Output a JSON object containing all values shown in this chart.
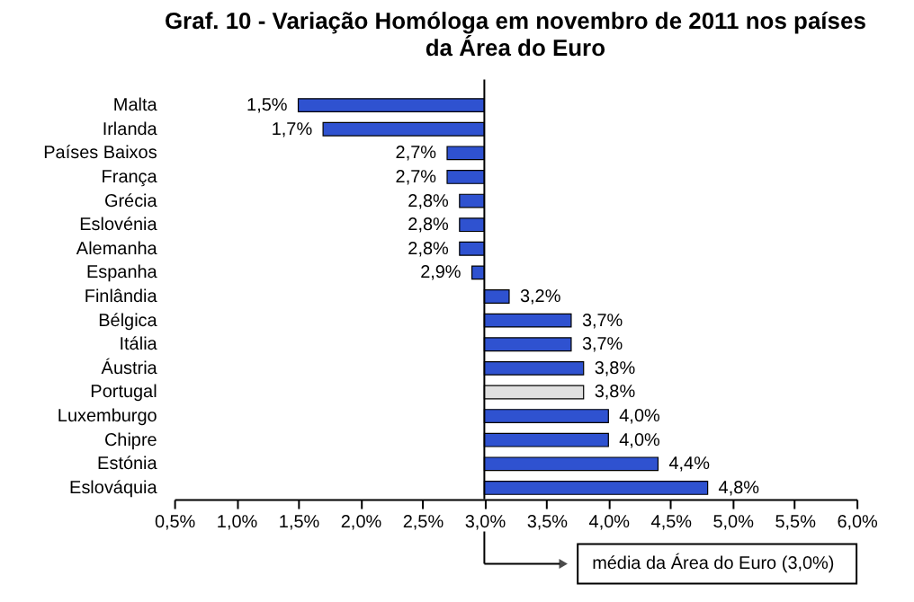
{
  "chart_data": {
    "type": "bar",
    "orientation": "horizontal",
    "title": "Graf. 10 - Variação Homóloga em novembro de 2011 nos países\nda Área do Euro",
    "categories": [
      "Malta",
      "Irlanda",
      "Países Baixos",
      "França",
      "Grécia",
      "Eslovénia",
      "Alemanha",
      "Espanha",
      "Finlândia",
      "Bélgica",
      "Itália",
      "Áustria",
      "Portugal",
      "Luxemburgo",
      "Chipre",
      "Estónia",
      "Eslováquia"
    ],
    "base": [
      3.0,
      3.0,
      3.0,
      3.0,
      3.0,
      3.0,
      3.0,
      3.0,
      3.0,
      3.0,
      3.0,
      3.0,
      3.0,
      3.0,
      3.0,
      3.0,
      3.0
    ],
    "values": [
      -1.5,
      -1.3,
      -0.3,
      -0.3,
      -0.2,
      -0.2,
      -0.2,
      -0.1,
      0.2,
      0.7,
      0.7,
      0.8,
      0.8,
      1.0,
      1.0,
      1.4,
      1.8
    ],
    "value_labels": [
      "1,5%",
      "1,7%",
      "2,7%",
      "2,7%",
      "2,8%",
      "2,8%",
      "2,8%",
      "2,9%",
      "3,2%",
      "3,7%",
      "3,7%",
      "3,8%",
      "3,8%",
      "4,0%",
      "4,0%",
      "4,4%",
      "4,8%"
    ],
    "colors": [
      "#2f52d0",
      "#2f52d0",
      "#2f52d0",
      "#2f52d0",
      "#2f52d0",
      "#2f52d0",
      "#2f52d0",
      "#2f52d0",
      "#2f52d0",
      "#2f52d0",
      "#2f52d0",
      "#2f52d0",
      "#e0e0e0",
      "#2f52d0",
      "#2f52d0",
      "#2f52d0",
      "#2f52d0"
    ],
    "xlim": [
      0.5,
      6.0
    ],
    "xticks": [
      {
        "value": 0.5,
        "label": "0,5%"
      },
      {
        "value": 1.0,
        "label": "1,0%"
      },
      {
        "value": 1.5,
        "label": "1,5%"
      },
      {
        "value": 2.0,
        "label": "2,0%"
      },
      {
        "value": 2.5,
        "label": "2,5%"
      },
      {
        "value": 3.0,
        "label": "3,0%"
      },
      {
        "value": 3.5,
        "label": "3,5%"
      },
      {
        "value": 4.0,
        "label": "4,0%"
      },
      {
        "value": 4.5,
        "label": "4,5%"
      },
      {
        "value": 5.0,
        "label": "5,0%"
      },
      {
        "value": 5.5,
        "label": "5,5%"
      },
      {
        "value": 6.0,
        "label": "6,0%"
      }
    ],
    "annotations": [
      "média da Área do Euro (3,0%)"
    ],
    "ref_lines": [
      {
        "axis": "x",
        "value": 3.0
      }
    ],
    "grid": false
  }
}
